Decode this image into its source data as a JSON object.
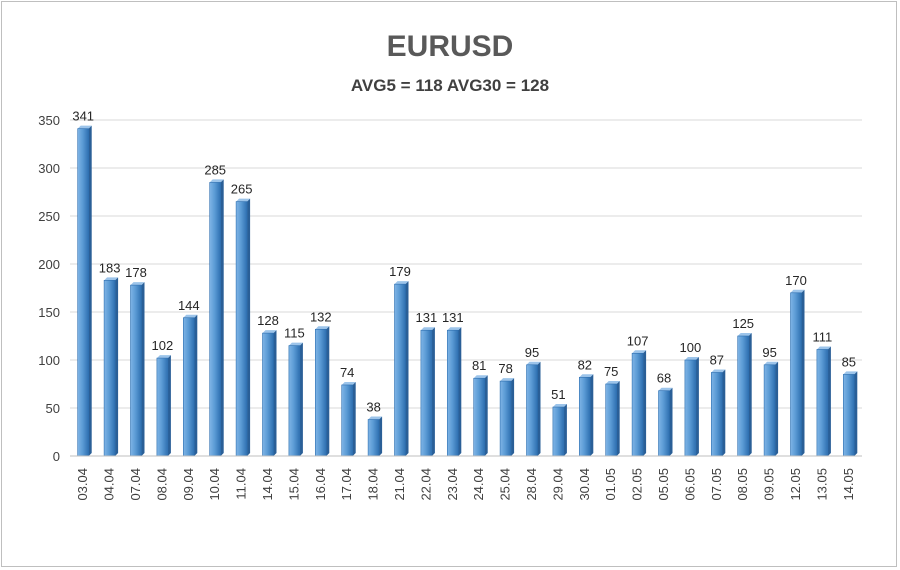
{
  "chart_data": {
    "type": "bar",
    "title": "EURUSD",
    "subtitle": "AVG5 = 118 AVG30 = 128",
    "xlabel": "",
    "ylabel": "",
    "ylim": [
      0,
      350
    ],
    "yticks": [
      0,
      50,
      100,
      150,
      200,
      250,
      300,
      350
    ],
    "grid": true,
    "legend": "none",
    "bar_color": "#5b9bd5",
    "categories": [
      "03.04",
      "04.04",
      "07.04",
      "08.04",
      "09.04",
      "10.04",
      "11.04",
      "14.04",
      "15.04",
      "16.04",
      "17.04",
      "18.04",
      "21.04",
      "22.04",
      "23.04",
      "24.04",
      "25.04",
      "28.04",
      "29.04",
      "30.04",
      "01.05",
      "02.05",
      "05.05",
      "06.05",
      "07.05",
      "08.05",
      "09.05",
      "12.05",
      "13.05",
      "14.05"
    ],
    "values": [
      341,
      183,
      178,
      102,
      144,
      285,
      265,
      128,
      115,
      132,
      74,
      38,
      179,
      131,
      131,
      81,
      78,
      95,
      51,
      82,
      75,
      107,
      68,
      100,
      87,
      125,
      95,
      170,
      111,
      85
    ]
  }
}
